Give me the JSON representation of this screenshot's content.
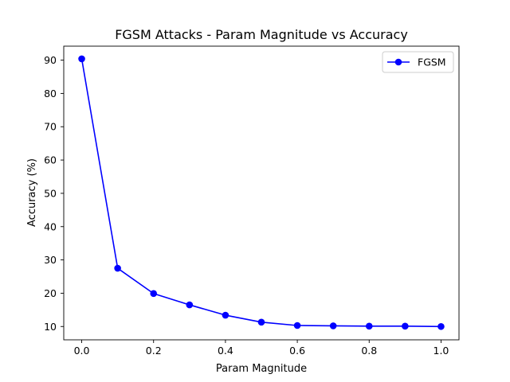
{
  "chart_data": {
    "type": "line",
    "title": "FGSM Attacks - Param Magnitude vs Accuracy",
    "xlabel": "Param Magnitude",
    "ylabel": "Accuracy (%)",
    "xlim": [
      -0.05,
      1.05
    ],
    "ylim": [
      6.0,
      94.2
    ],
    "xticks": [
      0.0,
      0.2,
      0.4,
      0.6,
      0.8,
      1.0
    ],
    "xtick_labels": [
      "0.0",
      "0.2",
      "0.4",
      "0.6",
      "0.8",
      "1.0"
    ],
    "yticks": [
      10,
      20,
      30,
      40,
      50,
      60,
      70,
      80,
      90
    ],
    "ytick_labels": [
      "10",
      "20",
      "30",
      "40",
      "50",
      "60",
      "70",
      "80",
      "90"
    ],
    "grid": false,
    "legend_position": "top-right",
    "series": [
      {
        "name": "FGSM",
        "color": "#0000ff",
        "marker": "circle",
        "x": [
          0.0,
          0.1,
          0.2,
          0.3,
          0.4,
          0.5,
          0.6,
          0.7,
          0.8,
          0.9,
          1.0
        ],
        "y": [
          90.4,
          27.5,
          19.9,
          16.5,
          13.4,
          11.3,
          10.3,
          10.2,
          10.1,
          10.1,
          10.0
        ]
      }
    ]
  }
}
